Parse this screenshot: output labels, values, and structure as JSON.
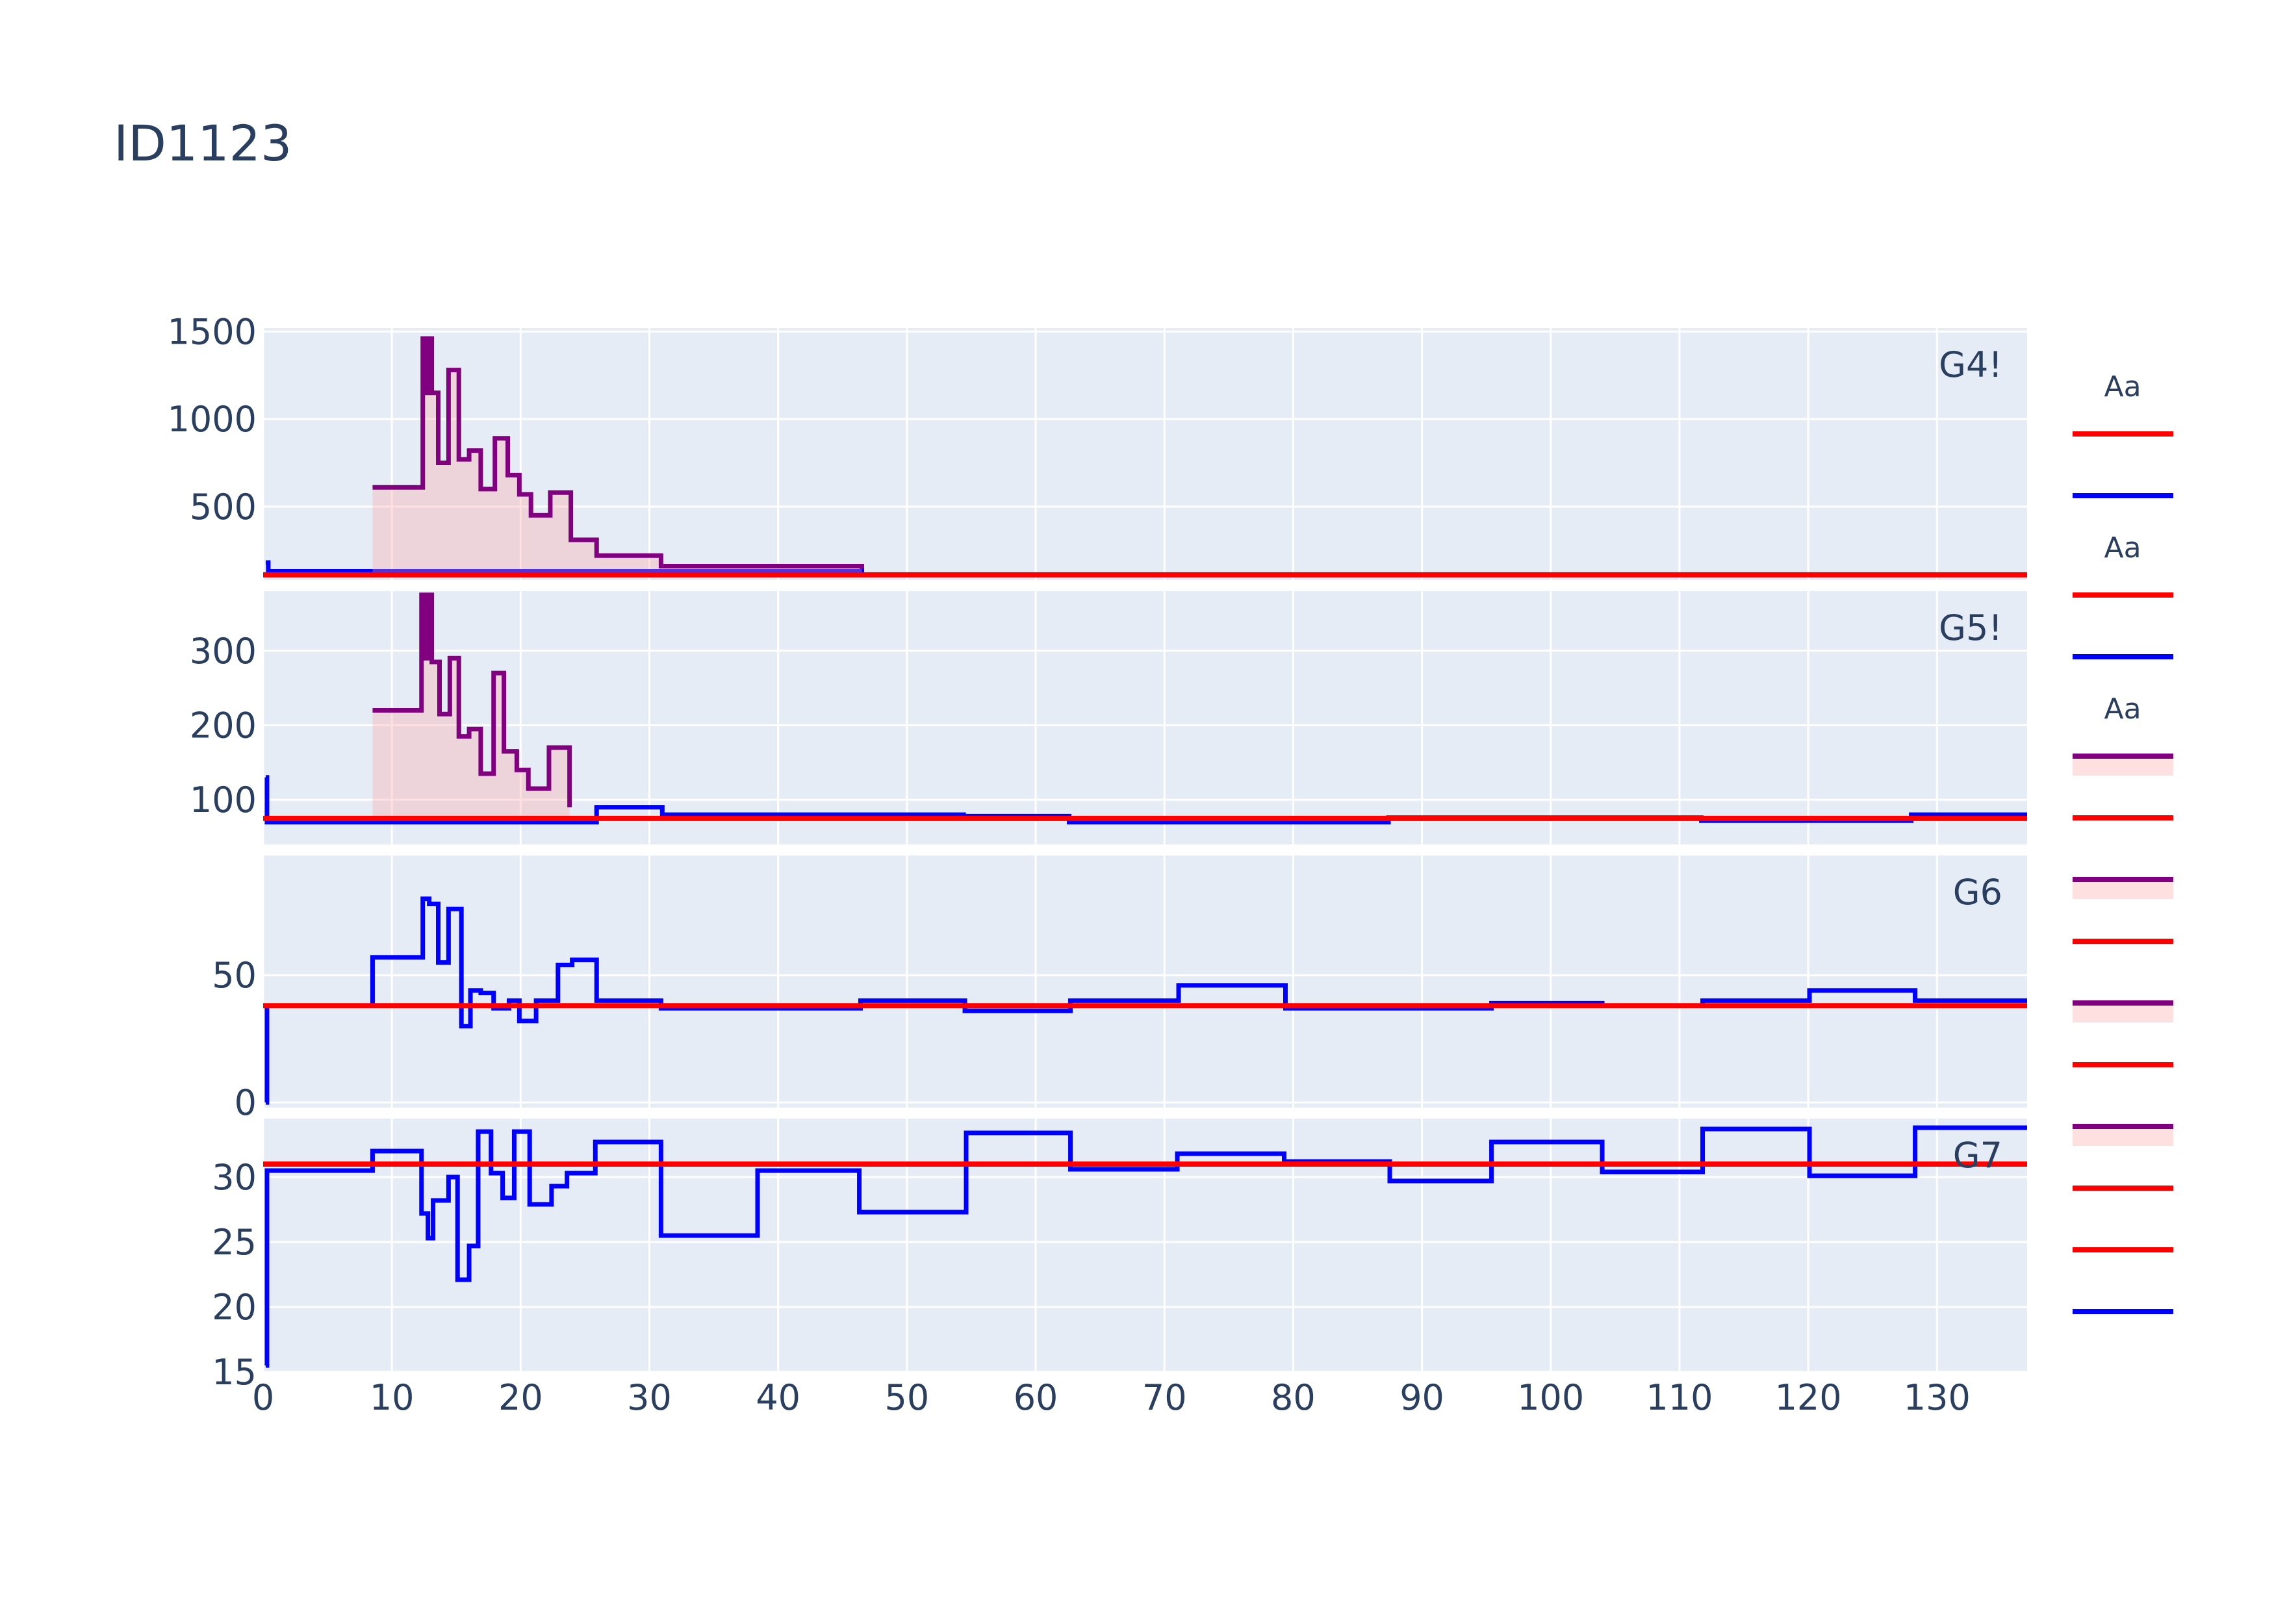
{
  "title": "ID1123",
  "colors": {
    "plot_bg": "#e5ecf6",
    "grid": "#ffffff",
    "red": "#ff0000",
    "blue": "#0000ff",
    "purple": "#800080",
    "fill": "rgba(255,160,160,0.32)"
  },
  "chart_data": {
    "type": "line",
    "subtype": "step (hv) multi-panel with shared x axis",
    "title": "ID1123",
    "x_range": [
      0,
      137
    ],
    "x_ticks": [
      0,
      10,
      20,
      30,
      40,
      50,
      60,
      70,
      80,
      90,
      100,
      110,
      120,
      130
    ],
    "grid": true,
    "legend_position": "right",
    "legend_groups": [
      {
        "title": "Aa",
        "items": [
          "red",
          "blue"
        ]
      },
      {
        "title": "Aa",
        "items": [
          "red",
          "blue"
        ]
      },
      {
        "title": "Aa",
        "items": [
          "purple-fill",
          "red",
          "purple-fill",
          "red",
          "purple-fill",
          "red",
          "purple-fill",
          "red",
          "red",
          "blue"
        ]
      }
    ],
    "panels": [
      {
        "label": "G4!",
        "y_range": [
          80,
          1520
        ],
        "y_ticks": [
          500,
          1000,
          1500
        ],
        "reference": 110,
        "series": [
          {
            "color": "blue",
            "fill": false,
            "x": [
              0.2,
              0.4,
              8.5,
              46.5
            ],
            "y": [
              180,
              130,
              130,
              145
            ]
          },
          {
            "color": "purple",
            "fill": true,
            "x": [
              8.5,
              12.4,
              12.6,
              12.8,
              13.1,
              13.6,
              14.4,
              15.2,
              16.0,
              16.9,
              18.0,
              19.0,
              19.9,
              20.8,
              22.3,
              23.9,
              25.9,
              30.9,
              46.5
            ],
            "y": [
              610,
              1460,
              1150,
              1460,
              1150,
              750,
              1280,
              770,
              820,
              600,
              890,
              680,
              570,
              450,
              580,
              310,
              220,
              160,
              145
            ]
          }
        ]
      },
      {
        "label": "G5!",
        "y_range": [
          40,
          380
        ],
        "y_ticks": [
          100,
          200,
          300
        ],
        "reference": 75,
        "series": [
          {
            "color": "blue",
            "fill": false,
            "x": [
              0.2,
              0.3,
              8.5,
              25.9,
              31.0,
              54.4,
              62.6,
              87.4,
              111.7,
              128.0,
              137
            ],
            "y": [
              130,
              70,
              70,
              90,
              80,
              78,
              70,
              76,
              72,
              80,
              80
            ]
          },
          {
            "color": "purple",
            "fill": true,
            "x": [
              8.5,
              12.3,
              12.6,
              12.8,
              13.1,
              13.7,
              14.5,
              15.2,
              16.0,
              16.9,
              17.9,
              18.7,
              19.7,
              20.6,
              22.2,
              23.8
            ],
            "y": [
              220,
              375,
              290,
              375,
              285,
              215,
              290,
              185,
              195,
              135,
              270,
              165,
              140,
              115,
              170,
              90
            ]
          }
        ]
      },
      {
        "label": "G6",
        "y_range": [
          -2,
          97
        ],
        "y_ticks": [
          0,
          50
        ],
        "reference": 38,
        "series": [
          {
            "color": "blue",
            "fill": false,
            "x": [
              0.2,
              0.3,
              8.5,
              12.4,
              12.9,
              13.6,
              14.4,
              15.4,
              16.1,
              16.9,
              17.9,
              19.1,
              19.9,
              21.2,
              22.9,
              24.0,
              25.9,
              30.9,
              46.4,
              54.5,
              62.7,
              71.1,
              79.4,
              95.4,
              104.0,
              111.8,
              120.1,
              128.3,
              137
            ],
            "y": [
              0,
              38,
              57,
              80,
              78,
              55,
              76,
              30,
              44,
              43,
              37,
              40,
              32,
              40,
              54,
              56,
              40,
              37,
              40,
              36,
              40,
              46,
              37,
              39,
              38,
              40,
              44,
              40,
              40
            ]
          }
        ]
      },
      {
        "label": "G7",
        "y_range": [
          15,
          34.5
        ],
        "y_ticks": [
          15,
          20,
          25,
          30
        ],
        "reference": 31,
        "series": [
          {
            "color": "blue",
            "fill": false,
            "x": [
              0.2,
              0.3,
              8.5,
              12.3,
              12.8,
              13.2,
              13.6,
              14.4,
              15.1,
              16.0,
              16.7,
              17.7,
              18.6,
              19.5,
              20.7,
              22.4,
              23.6,
              25.8,
              30.9,
              38.4,
              46.3,
              54.6,
              62.7,
              71.0,
              79.3,
              87.5,
              95.4,
              104.0,
              111.8,
              120.1,
              128.3,
              137
            ],
            "y": [
              15.5,
              30.5,
              32,
              27.2,
              25.3,
              28.2,
              28.2,
              30,
              22.1,
              24.7,
              33.5,
              30.3,
              28.4,
              33.5,
              27.9,
              29.3,
              30.3,
              32.7,
              25.5,
              30.5,
              27.3,
              33.4,
              30.6,
              31.8,
              31.2,
              29.7,
              32.7,
              30.4,
              33.7,
              30.1,
              33.8,
              33.8
            ]
          }
        ]
      }
    ]
  }
}
